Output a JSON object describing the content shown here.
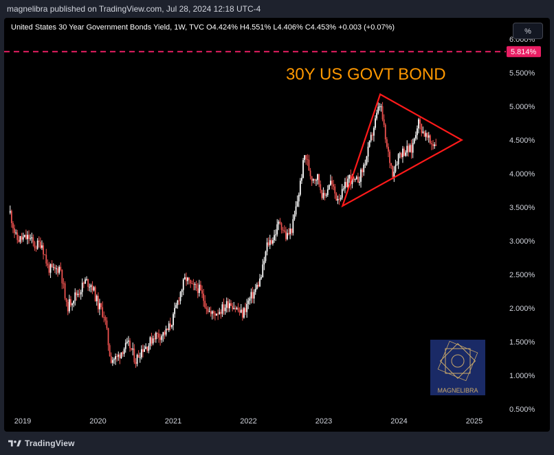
{
  "header": {
    "published": "magnelibra published on TradingView.com, Jul 28, 2024 12:18 UTC-4"
  },
  "legend": {
    "text": "United States 30 Year Government Bonds Yield, 1W, TVC  O4.424%  H4.551%  L4.406%  C4.453%  +0.003 (+0.07%)"
  },
  "scale_button": "%",
  "watermark": {
    "text": "MAGNELIBRA",
    "bg": "#1a2a66",
    "gold": "#c9a86a"
  },
  "footer": {
    "brand": "TradingView",
    "icon": "tradingview-logo-icon"
  },
  "colors": {
    "up": "#ffffff",
    "down": "#ef5350",
    "triangle": "#ff1a1a",
    "title": "#ff9800",
    "dashed": "#e91e63"
  },
  "chart_data": {
    "type": "candlestick",
    "title": "30Y US GOVT BOND",
    "x_ticks": [
      "2019",
      "2020",
      "2021",
      "2022",
      "2023",
      "2024",
      "2025"
    ],
    "y_ticks": [
      "0.500%",
      "1.000%",
      "1.500%",
      "2.000%",
      "2.500%",
      "3.000%",
      "3.500%",
      "4.000%",
      "4.500%",
      "5.000%",
      "5.500%",
      "6.000%"
    ],
    "ylim": [
      0.5,
      6.0
    ],
    "xlim": [
      "2018-10",
      "2025-09"
    ],
    "horizontal_line": {
      "value": 5.814,
      "label": "5.814%",
      "style": "dashed"
    },
    "last_price": 4.453,
    "weekly_closes_path": [
      [
        "2018-11",
        3.42
      ],
      [
        "2018-12",
        3.02
      ],
      [
        "2019-01",
        3.03
      ],
      [
        "2019-02",
        3.05
      ],
      [
        "2019-03",
        2.92
      ],
      [
        "2019-04",
        2.98
      ],
      [
        "2019-05",
        2.6
      ],
      [
        "2019-06",
        2.55
      ],
      [
        "2019-07",
        2.62
      ],
      [
        "2019-08",
        2.0
      ],
      [
        "2019-09",
        2.15
      ],
      [
        "2019-10",
        2.25
      ],
      [
        "2019-11",
        2.4
      ],
      [
        "2019-12",
        2.35
      ],
      [
        "2020-01",
        2.05
      ],
      [
        "2020-02",
        1.9
      ],
      [
        "2020-03",
        1.25
      ],
      [
        "2020-04",
        1.25
      ],
      [
        "2020-05",
        1.4
      ],
      [
        "2020-06",
        1.45
      ],
      [
        "2020-07",
        1.22
      ],
      [
        "2020-08",
        1.4
      ],
      [
        "2020-09",
        1.45
      ],
      [
        "2020-10",
        1.6
      ],
      [
        "2020-11",
        1.6
      ],
      [
        "2020-12",
        1.65
      ],
      [
        "2021-01",
        1.85
      ],
      [
        "2021-02",
        2.2
      ],
      [
        "2021-03",
        2.45
      ],
      [
        "2021-04",
        2.3
      ],
      [
        "2021-05",
        2.3
      ],
      [
        "2021-06",
        2.1
      ],
      [
        "2021-07",
        1.9
      ],
      [
        "2021-08",
        1.95
      ],
      [
        "2021-09",
        2.0
      ],
      [
        "2021-10",
        2.1
      ],
      [
        "2021-11",
        2.0
      ],
      [
        "2021-12",
        1.9
      ],
      [
        "2022-01",
        2.1
      ],
      [
        "2022-02",
        2.25
      ],
      [
        "2022-03",
        2.45
      ],
      [
        "2022-04",
        2.95
      ],
      [
        "2022-05",
        3.05
      ],
      [
        "2022-06",
        3.3
      ],
      [
        "2022-07",
        3.05
      ],
      [
        "2022-08",
        3.2
      ],
      [
        "2022-09",
        3.7
      ],
      [
        "2022-10",
        4.3
      ],
      [
        "2022-11",
        3.95
      ],
      [
        "2022-12",
        3.95
      ],
      [
        "2023-01",
        3.62
      ],
      [
        "2023-02",
        3.9
      ],
      [
        "2023-03",
        3.65
      ],
      [
        "2023-04",
        3.7
      ],
      [
        "2023-05",
        3.95
      ],
      [
        "2023-06",
        3.85
      ],
      [
        "2023-07",
        4.0
      ],
      [
        "2023-08",
        4.3
      ],
      [
        "2023-09",
        4.7
      ],
      [
        "2023-10",
        5.05
      ],
      [
        "2023-11",
        4.4
      ],
      [
        "2023-12",
        4.02
      ],
      [
        "2024-01",
        4.3
      ],
      [
        "2024-02",
        4.35
      ],
      [
        "2024-03",
        4.35
      ],
      [
        "2024-04",
        4.78
      ],
      [
        "2024-05",
        4.6
      ],
      [
        "2024-06",
        4.45
      ],
      [
        "2024-07",
        4.45
      ]
    ],
    "annotations": [
      {
        "type": "triangle",
        "points": [
          [
            "2023-04",
            3.52
          ],
          [
            "2023-10",
            5.18
          ],
          [
            "2024-11",
            4.5
          ]
        ]
      }
    ]
  }
}
